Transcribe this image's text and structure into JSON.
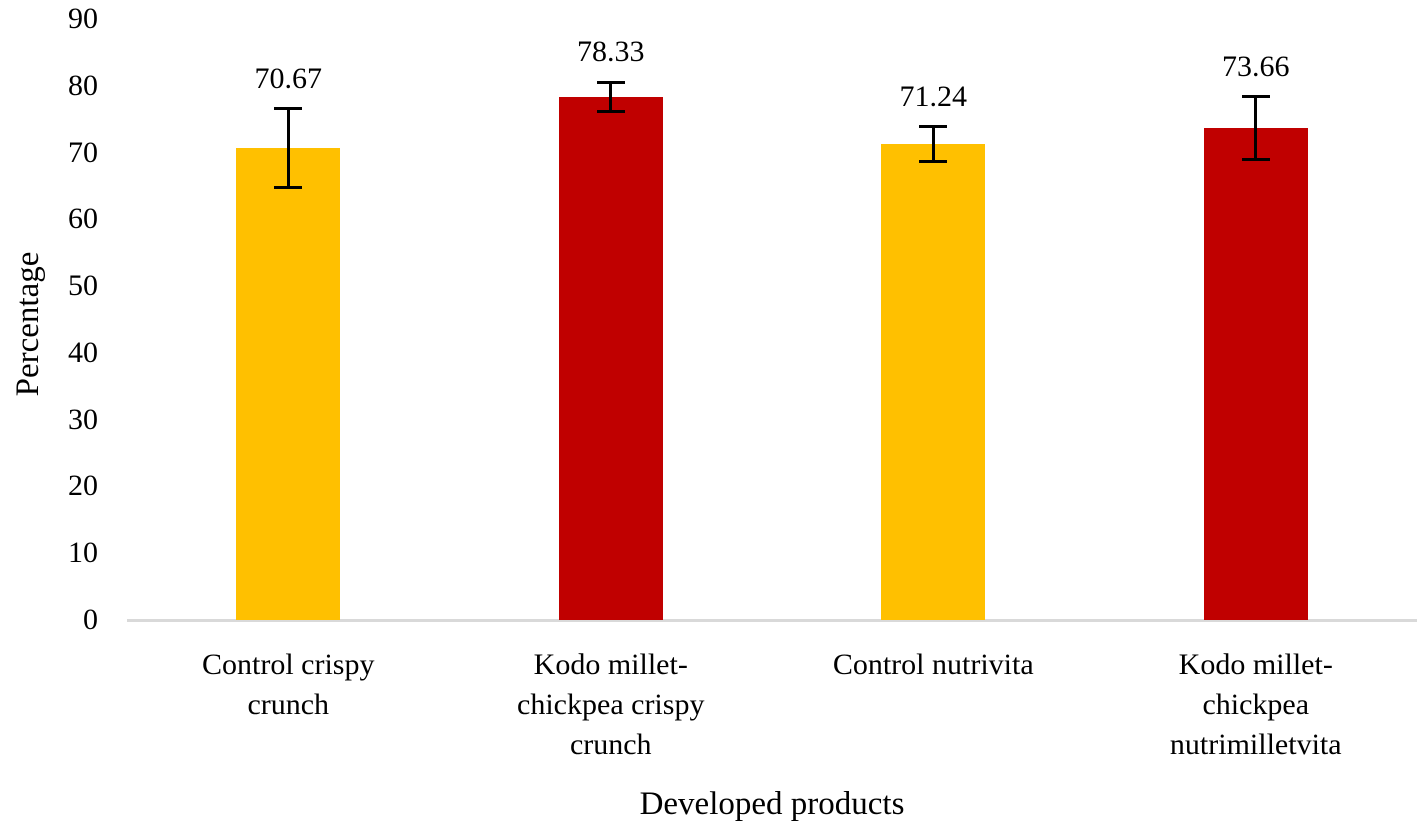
{
  "chart_data": {
    "type": "bar",
    "title": "",
    "xlabel": "Developed products",
    "ylabel": "Percentage",
    "categories": [
      "Control crispy crunch",
      "Kodo millet-chickpea crispy crunch",
      "Control nutrivita",
      "Kodo millet-chickpea nutrimilletvita"
    ],
    "values": [
      70.67,
      78.33,
      71.24,
      73.66
    ],
    "value_labels": [
      "70.67",
      "78.33",
      "71.24",
      "73.66"
    ],
    "errors": [
      5.9,
      2.2,
      2.6,
      4.7
    ],
    "bar_colors": [
      "#FFC000",
      "#C00000",
      "#FFC000",
      "#C00000"
    ],
    "ylim": [
      0,
      90
    ],
    "ytick_step": 10,
    "yticks": [
      "0",
      "10",
      "20",
      "30",
      "40",
      "50",
      "60",
      "70",
      "80",
      "90"
    ],
    "grid": false,
    "legend_position": "none",
    "axis_line_color": "#D9D9D9",
    "error_bar_color": "#000000",
    "text_color": "#000000",
    "background_color": "#FFFFFF"
  }
}
